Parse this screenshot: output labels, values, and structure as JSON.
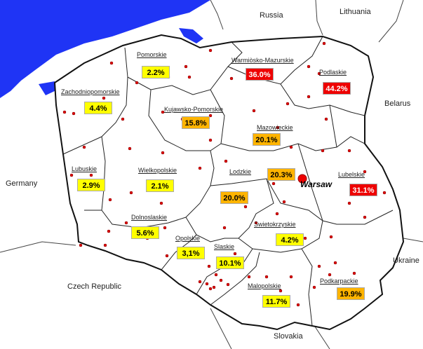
{
  "colors": {
    "sea": "#1f34f5",
    "land": "#ffffff",
    "border": "#222222",
    "city_dot": "#e00000",
    "capital": "#ee0000",
    "yellow": "#ffff00",
    "orange": "#ffb400",
    "red": "#ee0000"
  },
  "countries": {
    "russia": "Russia",
    "lithuania": "Lithuania",
    "belarus": "Belarus",
    "germany": "Germany",
    "ukraine": "Ukraine",
    "czech": "Czech Republic",
    "slovakia": "Slovakia"
  },
  "capital": {
    "name": "Warsaw",
    "icon": "capital-marker-icon"
  },
  "regions": [
    {
      "id": "pomorskie",
      "name": "Pomorskie",
      "value": "2.2%",
      "level": "yellow"
    },
    {
      "id": "warminsko-mazurskie",
      "name": "Warmiòsko-Mazurskie",
      "value": "36.0%",
      "level": "red"
    },
    {
      "id": "podlaskie",
      "name": "Podlaskie",
      "value": "44.2%",
      "level": "red"
    },
    {
      "id": "zachodniopomorskie",
      "name": "Zachodniopomorskie",
      "value": "4.4%",
      "level": "yellow"
    },
    {
      "id": "kujawsko-pomorskie",
      "name": "Kujawsko-Pomorskie",
      "value": "15.8%",
      "level": "orange"
    },
    {
      "id": "mazowieckie",
      "name": "Mazowieckie",
      "value": "20.1%",
      "level": "orange"
    },
    {
      "id": "lubuskie",
      "name": "Lubuskie",
      "value": "2.9%",
      "level": "yellow"
    },
    {
      "id": "wielkopolskie",
      "name": "Wielkopolskie",
      "value": "2.1%",
      "level": "yellow"
    },
    {
      "id": "lodzkie",
      "name": "Lodzkie",
      "value": "20.0%",
      "level": "orange"
    },
    {
      "id": "warsaw",
      "name": "",
      "value": "20.3%",
      "level": "orange"
    },
    {
      "id": "lubelskie",
      "name": "Lubelskie",
      "value": "31.1%",
      "level": "red"
    },
    {
      "id": "dolnoslaskie",
      "name": "Dolnoslaskie",
      "value": "5.6%",
      "level": "yellow"
    },
    {
      "id": "opolskie",
      "name": "Opolskie",
      "value": "3,1%",
      "level": "yellow"
    },
    {
      "id": "slaskie",
      "name": "Slaskie",
      "value": "10.1%",
      "level": "yellow"
    },
    {
      "id": "swietokrzyskie",
      "name": "Swietokrzyskie",
      "value": "4.2%",
      "level": "yellow"
    },
    {
      "id": "malopolskie",
      "name": "Malopolskie",
      "value": "11.7%",
      "level": "yellow"
    },
    {
      "id": "podkarpackie",
      "name": "Podkarpackie",
      "value": "19.9%",
      "level": "orange"
    }
  ]
}
